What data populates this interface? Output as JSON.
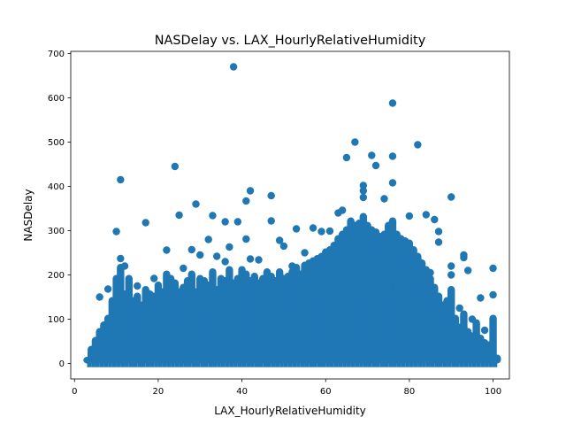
{
  "chart_data": {
    "type": "scatter",
    "title": "NASDelay vs. LAX_HourlyRelativeHumidity",
    "xlabel": "LAX_HourlyRelativeHumidity",
    "ylabel": "NASDelay",
    "xlim": [
      -0.9,
      103.9
    ],
    "ylim": [
      -35,
      705
    ],
    "x_ticks": [
      0,
      20,
      40,
      60,
      80,
      100
    ],
    "y_ticks": [
      0,
      100,
      200,
      300,
      400,
      500,
      600,
      700
    ],
    "grid": false,
    "color": "#1f77b4",
    "outliers": [
      {
        "x": 38,
        "y": 670
      },
      {
        "x": 76,
        "y": 588
      },
      {
        "x": 82,
        "y": 494
      },
      {
        "x": 67,
        "y": 500
      },
      {
        "x": 65,
        "y": 465
      },
      {
        "x": 71,
        "y": 470
      },
      {
        "x": 72,
        "y": 447
      },
      {
        "x": 76,
        "y": 468
      },
      {
        "x": 24,
        "y": 445
      },
      {
        "x": 11,
        "y": 415
      },
      {
        "x": 42,
        "y": 390
      },
      {
        "x": 47,
        "y": 379
      },
      {
        "x": 69,
        "y": 402
      },
      {
        "x": 69,
        "y": 390
      },
      {
        "x": 76,
        "y": 408
      },
      {
        "x": 69,
        "y": 375
      },
      {
        "x": 74,
        "y": 372
      },
      {
        "x": 90,
        "y": 376
      },
      {
        "x": 41,
        "y": 367
      },
      {
        "x": 29,
        "y": 360
      },
      {
        "x": 10,
        "y": 298
      },
      {
        "x": 25,
        "y": 335
      },
      {
        "x": 33,
        "y": 334
      },
      {
        "x": 36,
        "y": 320
      },
      {
        "x": 47,
        "y": 322
      },
      {
        "x": 17,
        "y": 318
      },
      {
        "x": 39,
        "y": 320
      },
      {
        "x": 84,
        "y": 336
      },
      {
        "x": 86,
        "y": 325
      },
      {
        "x": 63,
        "y": 340
      },
      {
        "x": 64,
        "y": 346
      },
      {
        "x": 80,
        "y": 333
      },
      {
        "x": 87,
        "y": 298
      },
      {
        "x": 87,
        "y": 274
      },
      {
        "x": 93,
        "y": 245
      },
      {
        "x": 93,
        "y": 239
      },
      {
        "x": 97,
        "y": 148
      },
      {
        "x": 100,
        "y": 215
      },
      {
        "x": 100,
        "y": 155
      },
      {
        "x": 90,
        "y": 220
      },
      {
        "x": 90,
        "y": 200
      },
      {
        "x": 94,
        "y": 210
      },
      {
        "x": 49,
        "y": 278
      },
      {
        "x": 41,
        "y": 281
      },
      {
        "x": 37,
        "y": 263
      },
      {
        "x": 32,
        "y": 280
      },
      {
        "x": 22,
        "y": 256
      },
      {
        "x": 42,
        "y": 236
      },
      {
        "x": 53,
        "y": 304
      },
      {
        "x": 57,
        "y": 306
      },
      {
        "x": 59,
        "y": 298
      },
      {
        "x": 61,
        "y": 299
      },
      {
        "x": 44,
        "y": 234
      },
      {
        "x": 34,
        "y": 242
      },
      {
        "x": 28,
        "y": 257
      },
      {
        "x": 11,
        "y": 237
      },
      {
        "x": 6,
        "y": 150
      },
      {
        "x": 8,
        "y": 168
      },
      {
        "x": 12,
        "y": 220
      },
      {
        "x": 15,
        "y": 175
      },
      {
        "x": 85,
        "y": 205
      },
      {
        "x": 92,
        "y": 125
      },
      {
        "x": 95,
        "y": 100
      },
      {
        "x": 98,
        "y": 75
      },
      {
        "x": 55,
        "y": 250
      },
      {
        "x": 52,
        "y": 220
      },
      {
        "x": 46,
        "y": 205
      },
      {
        "x": 19,
        "y": 192
      },
      {
        "x": 26,
        "y": 215
      },
      {
        "x": 30,
        "y": 245
      },
      {
        "x": 36,
        "y": 230
      },
      {
        "x": 50,
        "y": 265
      }
    ],
    "column_bands": [
      {
        "x": 3,
        "top": 15
      },
      {
        "x": 4,
        "top": 40
      },
      {
        "x": 5,
        "top": 60
      },
      {
        "x": 6,
        "top": 80
      },
      {
        "x": 7,
        "top": 95
      },
      {
        "x": 8,
        "top": 110
      },
      {
        "x": 9,
        "top": 150
      },
      {
        "x": 10,
        "top": 200
      },
      {
        "x": 11,
        "top": 225
      },
      {
        "x": 12,
        "top": 165
      },
      {
        "x": 13,
        "top": 200
      },
      {
        "x": 14,
        "top": 150
      },
      {
        "x": 15,
        "top": 160
      },
      {
        "x": 16,
        "top": 140
      },
      {
        "x": 17,
        "top": 175
      },
      {
        "x": 18,
        "top": 165
      },
      {
        "x": 19,
        "top": 160
      },
      {
        "x": 20,
        "top": 185
      },
      {
        "x": 21,
        "top": 170
      },
      {
        "x": 22,
        "top": 210
      },
      {
        "x": 23,
        "top": 200
      },
      {
        "x": 24,
        "top": 190
      },
      {
        "x": 25,
        "top": 170
      },
      {
        "x": 26,
        "top": 180
      },
      {
        "x": 27,
        "top": 195
      },
      {
        "x": 28,
        "top": 210
      },
      {
        "x": 29,
        "top": 170
      },
      {
        "x": 30,
        "top": 200
      },
      {
        "x": 31,
        "top": 195
      },
      {
        "x": 32,
        "top": 185
      },
      {
        "x": 33,
        "top": 215
      },
      {
        "x": 34,
        "top": 175
      },
      {
        "x": 35,
        "top": 200
      },
      {
        "x": 36,
        "top": 195
      },
      {
        "x": 37,
        "top": 220
      },
      {
        "x": 38,
        "top": 190
      },
      {
        "x": 39,
        "top": 200
      },
      {
        "x": 40,
        "top": 220
      },
      {
        "x": 41,
        "top": 210
      },
      {
        "x": 42,
        "top": 195
      },
      {
        "x": 43,
        "top": 205
      },
      {
        "x": 44,
        "top": 190
      },
      {
        "x": 45,
        "top": 200
      },
      {
        "x": 46,
        "top": 215
      },
      {
        "x": 47,
        "top": 205
      },
      {
        "x": 48,
        "top": 195
      },
      {
        "x": 49,
        "top": 215
      },
      {
        "x": 50,
        "top": 200
      },
      {
        "x": 51,
        "top": 205
      },
      {
        "x": 52,
        "top": 215
      },
      {
        "x": 53,
        "top": 225
      },
      {
        "x": 54,
        "top": 210
      },
      {
        "x": 55,
        "top": 230
      },
      {
        "x": 56,
        "top": 235
      },
      {
        "x": 57,
        "top": 240
      },
      {
        "x": 58,
        "top": 245
      },
      {
        "x": 59,
        "top": 250
      },
      {
        "x": 60,
        "top": 260
      },
      {
        "x": 61,
        "top": 265
      },
      {
        "x": 62,
        "top": 275
      },
      {
        "x": 63,
        "top": 290
      },
      {
        "x": 64,
        "top": 300
      },
      {
        "x": 65,
        "top": 310
      },
      {
        "x": 66,
        "top": 330
      },
      {
        "x": 67,
        "top": 320
      },
      {
        "x": 68,
        "top": 325
      },
      {
        "x": 69,
        "top": 340
      },
      {
        "x": 70,
        "top": 320
      },
      {
        "x": 71,
        "top": 310
      },
      {
        "x": 72,
        "top": 305
      },
      {
        "x": 73,
        "top": 295
      },
      {
        "x": 74,
        "top": 300
      },
      {
        "x": 75,
        "top": 320
      },
      {
        "x": 76,
        "top": 330
      },
      {
        "x": 77,
        "top": 300
      },
      {
        "x": 78,
        "top": 290
      },
      {
        "x": 79,
        "top": 285
      },
      {
        "x": 80,
        "top": 280
      },
      {
        "x": 81,
        "top": 265
      },
      {
        "x": 82,
        "top": 250
      },
      {
        "x": 83,
        "top": 235
      },
      {
        "x": 84,
        "top": 220
      },
      {
        "x": 85,
        "top": 200
      },
      {
        "x": 86,
        "top": 180
      },
      {
        "x": 87,
        "top": 160
      },
      {
        "x": 88,
        "top": 140
      },
      {
        "x": 89,
        "top": 150
      },
      {
        "x": 90,
        "top": 175
      },
      {
        "x": 91,
        "top": 110
      },
      {
        "x": 92,
        "top": 90
      },
      {
        "x": 93,
        "top": 120
      },
      {
        "x": 94,
        "top": 80
      },
      {
        "x": 95,
        "top": 70
      },
      {
        "x": 96,
        "top": 100
      },
      {
        "x": 97,
        "top": 65
      },
      {
        "x": 98,
        "top": 55
      },
      {
        "x": 99,
        "top": 50
      },
      {
        "x": 100,
        "top": 110
      },
      {
        "x": 101,
        "top": 20
      }
    ]
  }
}
